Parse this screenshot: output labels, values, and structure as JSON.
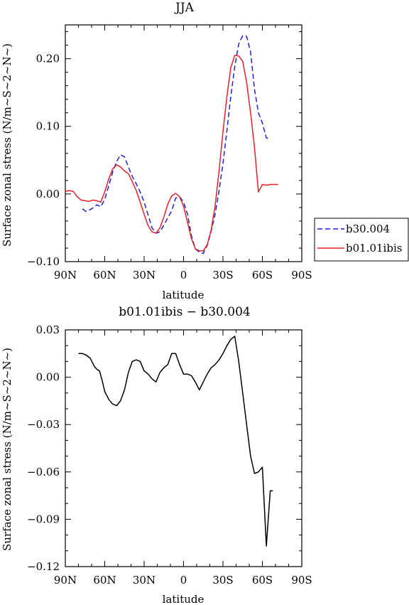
{
  "chart_data": [
    {
      "type": "line",
      "title": "JJA",
      "xlabel": "latitude",
      "ylabel": "Surface zonal stress (N/m~S~2~N~)",
      "x_ticks": [
        -90,
        -60,
        -30,
        0,
        30,
        60,
        90
      ],
      "x_tick_labels": [
        "90N",
        "60N",
        "30N",
        "0",
        "30S",
        "60S",
        "90S"
      ],
      "xlim": [
        -90,
        90
      ],
      "y_ticks": [
        -0.1,
        0.0,
        0.1,
        0.2
      ],
      "y_tick_labels": [
        "−0.10",
        "0.00",
        "0.10",
        "0.20"
      ],
      "ylim": [
        -0.1,
        0.25
      ],
      "grid": false,
      "legend_position": "outside-right",
      "series": [
        {
          "name": "b30.004",
          "color": "#1f1fd6",
          "dash": true,
          "x": [
            -77,
            -74,
            -70,
            -66,
            -63,
            -60,
            -57,
            -54,
            -51,
            -48,
            -45,
            -42,
            -39,
            -36,
            -33,
            -30,
            -27,
            -24,
            -21,
            -18,
            -15,
            -12,
            -9,
            -6,
            -3,
            0,
            3,
            6,
            9,
            12,
            15,
            18,
            21,
            24,
            27,
            30,
            33,
            36,
            39,
            42,
            45,
            48,
            51,
            54,
            57,
            60,
            63,
            66
          ],
          "y": [
            -0.022,
            -0.026,
            -0.022,
            -0.016,
            -0.019,
            -0.008,
            0.012,
            0.032,
            0.048,
            0.058,
            0.055,
            0.04,
            0.026,
            0.015,
            0.003,
            -0.012,
            -0.031,
            -0.05,
            -0.058,
            -0.056,
            -0.046,
            -0.035,
            -0.025,
            -0.006,
            -0.004,
            -0.012,
            -0.03,
            -0.062,
            -0.081,
            -0.086,
            -0.088,
            -0.076,
            -0.055,
            -0.03,
            0.005,
            0.045,
            0.094,
            0.145,
            0.188,
            0.222,
            0.234,
            0.233,
            0.21,
            0.155,
            0.12,
            0.105,
            0.083,
            0.081
          ]
        },
        {
          "name": "b01.01ibis",
          "color": "#e8202a",
          "dash": false,
          "x": [
            -90,
            -87,
            -84,
            -81,
            -78,
            -75,
            -72,
            -69,
            -66,
            -63,
            -60,
            -57,
            -54,
            -51,
            -48,
            -45,
            -42,
            -39,
            -36,
            -33,
            -30,
            -27,
            -24,
            -21,
            -18,
            -15,
            -12,
            -9,
            -6,
            -3,
            0,
            3,
            6,
            9,
            12,
            15,
            18,
            21,
            24,
            27,
            30,
            33,
            36,
            39,
            42,
            45,
            48,
            51,
            54,
            57,
            60,
            63,
            66,
            69,
            72
          ],
          "y": [
            0.004,
            0.005,
            0.004,
            -0.004,
            -0.009,
            -0.01,
            -0.011,
            -0.009,
            -0.01,
            -0.012,
            0.003,
            0.022,
            0.037,
            0.043,
            0.04,
            0.034,
            0.03,
            0.018,
            0.005,
            -0.012,
            -0.03,
            -0.047,
            -0.056,
            -0.058,
            -0.05,
            -0.034,
            -0.015,
            -0.003,
            0.001,
            -0.004,
            -0.018,
            -0.042,
            -0.066,
            -0.081,
            -0.084,
            -0.084,
            -0.075,
            -0.053,
            -0.018,
            0.034,
            0.092,
            0.145,
            0.187,
            0.205,
            0.204,
            0.196,
            0.165,
            0.12,
            0.069,
            0.003,
            0.014,
            0.013,
            0.014,
            0.014,
            0.014
          ]
        }
      ]
    },
    {
      "type": "line",
      "title": "b01.01ibis − b30.004",
      "xlabel": "latitude",
      "ylabel": "Surface zonal stress (N/m~S~2~N~)",
      "x_ticks": [
        -90,
        -60,
        -30,
        0,
        30,
        60,
        90
      ],
      "x_tick_labels": [
        "90N",
        "60N",
        "30N",
        "0",
        "30S",
        "60S",
        "90S"
      ],
      "xlim": [
        -90,
        90
      ],
      "y_ticks": [
        -0.12,
        -0.09,
        -0.06,
        -0.03,
        0.0,
        0.03
      ],
      "y_tick_labels": [
        "−0.12",
        "−0.09",
        "−0.06",
        "−0.03",
        "0.00",
        "0.03"
      ],
      "ylim": [
        -0.12,
        0.03
      ],
      "grid": false,
      "series": [
        {
          "color": "#000000",
          "dash": false,
          "x": [
            -80,
            -77,
            -74,
            -71,
            -68,
            -66,
            -64,
            -62,
            -60,
            -57,
            -54,
            -51,
            -48,
            -45,
            -42,
            -39,
            -36,
            -33,
            -30,
            -27,
            -24,
            -21,
            -18,
            -15,
            -12,
            -9,
            -6,
            -3,
            0,
            3,
            6,
            9,
            12,
            15,
            18,
            21,
            24,
            27,
            30,
            33,
            36,
            39,
            42,
            45,
            48,
            51,
            54,
            57,
            60,
            63,
            66,
            68
          ],
          "y": [
            0.015,
            0.015,
            0.014,
            0.012,
            0.007,
            0.005,
            0.004,
            -0.002,
            -0.009,
            -0.014,
            -0.017,
            -0.018,
            -0.015,
            -0.008,
            0.003,
            0.01,
            0.011,
            0.01,
            0.004,
            0.002,
            -0.001,
            -0.003,
            0.003,
            0.006,
            0.008,
            0.015,
            0.015,
            0.008,
            0.002,
            0.002,
            0.001,
            -0.003,
            -0.008,
            -0.003,
            0.002,
            0.006,
            0.008,
            0.011,
            0.015,
            0.02,
            0.024,
            0.026,
            0.01,
            -0.01,
            -0.03,
            -0.05,
            -0.061,
            -0.06,
            -0.057,
            -0.107,
            -0.072,
            -0.072
          ]
        }
      ]
    }
  ],
  "legend": {
    "items": [
      {
        "label": "b30.004",
        "color": "#1f1fd6",
        "dash": true
      },
      {
        "label": "b01.01ibis",
        "color": "#e8202a",
        "dash": false
      }
    ]
  }
}
